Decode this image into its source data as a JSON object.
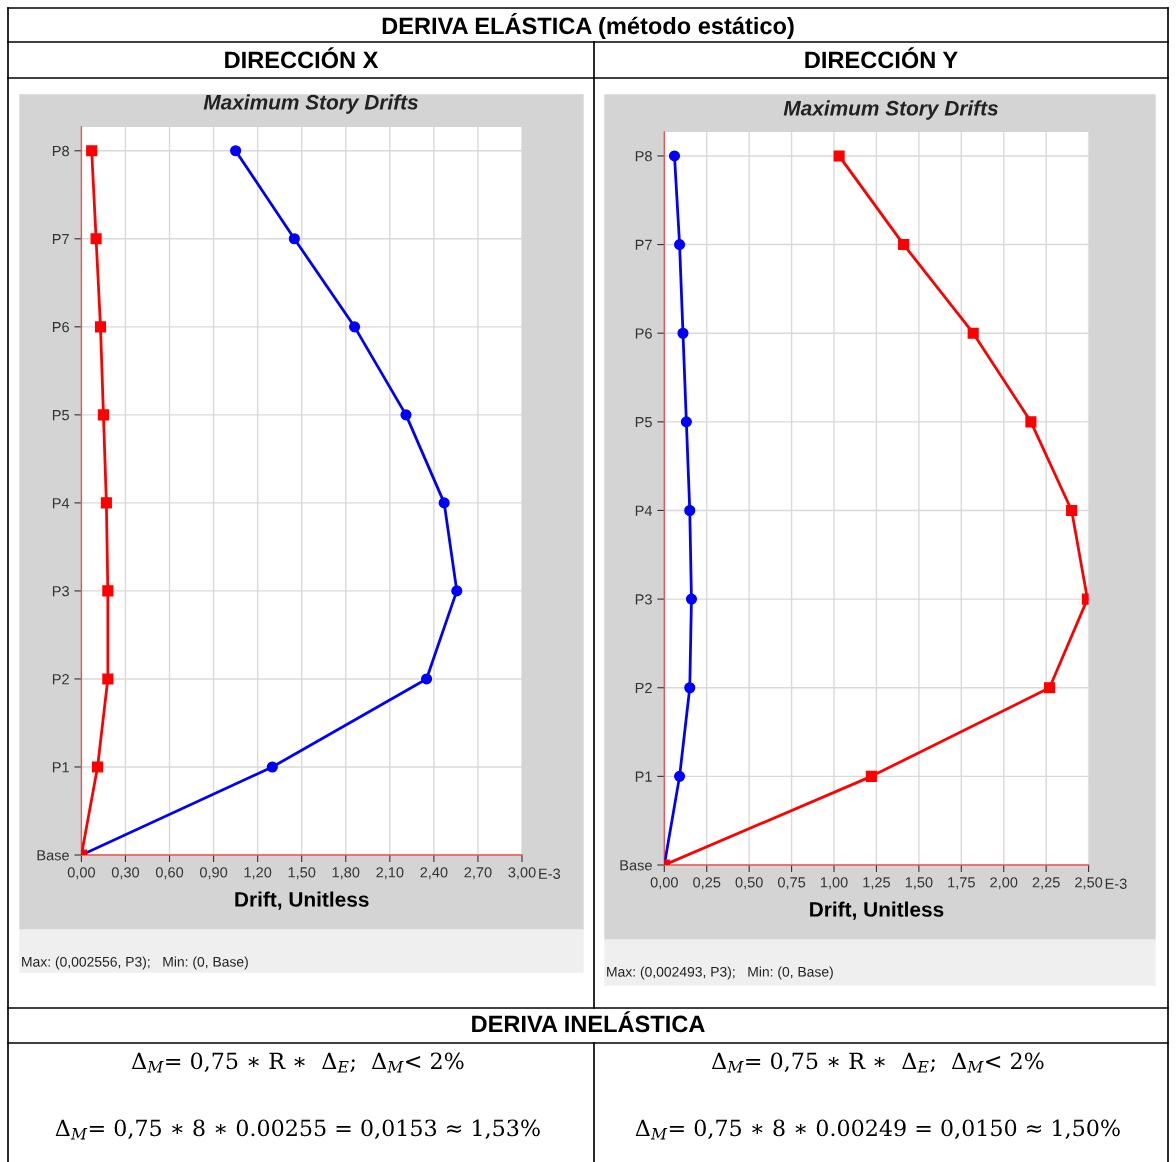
{
  "chart_data": [
    {
      "type": "line",
      "orientation": "horizontal",
      "title": "Maximum Story Drifts",
      "subtitle": "DIRECCIÓN X",
      "xlabel": "Drift, Unitless",
      "categories": [
        "P8",
        "P7",
        "P6",
        "P5",
        "P4",
        "P3",
        "P2",
        "P1",
        "Base"
      ],
      "series": [
        {
          "color": "#0000ff",
          "marker": "circle",
          "values": [
            1.05,
            1.45,
            1.86,
            2.21,
            2.47,
            2.556,
            2.35,
            1.3,
            0
          ]
        },
        {
          "color": "#ff0000",
          "marker": "square",
          "values": [
            0.07,
            0.1,
            0.13,
            0.15,
            0.17,
            0.18,
            0.18,
            0.11,
            0
          ]
        }
      ],
      "xlim": [
        0,
        3.0
      ],
      "xticks": [
        {
          "value": 0,
          "label": "0,00"
        },
        {
          "value": 0.3,
          "label": "0,30"
        },
        {
          "value": 0.6,
          "label": "0,60"
        },
        {
          "value": 0.9,
          "label": "0,90"
        },
        {
          "value": 1.2,
          "label": "1,20"
        },
        {
          "value": 1.5,
          "label": "1,50"
        },
        {
          "value": 1.8,
          "label": "1,80"
        },
        {
          "value": 2.1,
          "label": "2,10"
        },
        {
          "value": 2.4,
          "label": "2,40"
        },
        {
          "value": 2.7,
          "label": "2,70"
        },
        {
          "value": 3.0,
          "label": "3,00"
        }
      ],
      "grid": true,
      "legend": false,
      "line_style": "solid",
      "annotations": [
        "Max: (0,002556, P3);   Min: (0, Base)",
        "E-3",
        "Δ$_{M}$= 0,75 ∗ R ∗  Δ$_{E}$;  Δ$_{M}$< 2%",
        "Δ$_{M}$= 0,75 ∗ 8 ∗ 0.00255 = 0,0153 ≈ 1,53%",
        "DERIVA ELÁSTICA (método estático)",
        "DERIVA INELÁSTICA"
      ]
    },
    {
      "type": "line",
      "orientation": "horizontal",
      "title": "Maximum Story Drifts",
      "subtitle": "DIRECCIÓN Y",
      "xlabel": "Drift, Unitless",
      "categories": [
        "P8",
        "P7",
        "P6",
        "P5",
        "P4",
        "P3",
        "P2",
        "P1",
        "Base"
      ],
      "series": [
        {
          "color": "#0000ff",
          "marker": "circle",
          "values": [
            0.06,
            0.09,
            0.11,
            0.13,
            0.15,
            0.16,
            0.15,
            0.09,
            0
          ]
        },
        {
          "color": "#ff0000",
          "marker": "square",
          "values": [
            1.03,
            1.41,
            1.82,
            2.16,
            2.4,
            2.493,
            2.27,
            1.22,
            0
          ]
        }
      ],
      "xlim": [
        0,
        2.5
      ],
      "xticks": [
        {
          "value": 0,
          "label": "0,00"
        },
        {
          "value": 0.25,
          "label": "0,25"
        },
        {
          "value": 0.5,
          "label": "0,50"
        },
        {
          "value": 0.75,
          "label": "0,75"
        },
        {
          "value": 1.0,
          "label": "1,00"
        },
        {
          "value": 1.25,
          "label": "1,25"
        },
        {
          "value": 1.5,
          "label": "1,50"
        },
        {
          "value": 1.75,
          "label": "1,75"
        },
        {
          "value": 2.0,
          "label": "2,00"
        },
        {
          "value": 2.25,
          "label": "2,25"
        },
        {
          "value": 2.5,
          "label": "2,50"
        }
      ],
      "grid": true,
      "legend": false,
      "line_style": "solid",
      "annotations": [
        "Max: (0,002493, P3);   Min: (0, Base)",
        "E-3",
        "Δ$_{M}$= 0,75 ∗ R ∗  Δ$_{E}$;  Δ$_{M}$< 2%",
        "Δ$_{M}$= 0,75 ∗ 8 ∗ 0.00249 = 0,0150 ≈ 1,50%"
      ]
    }
  ]
}
